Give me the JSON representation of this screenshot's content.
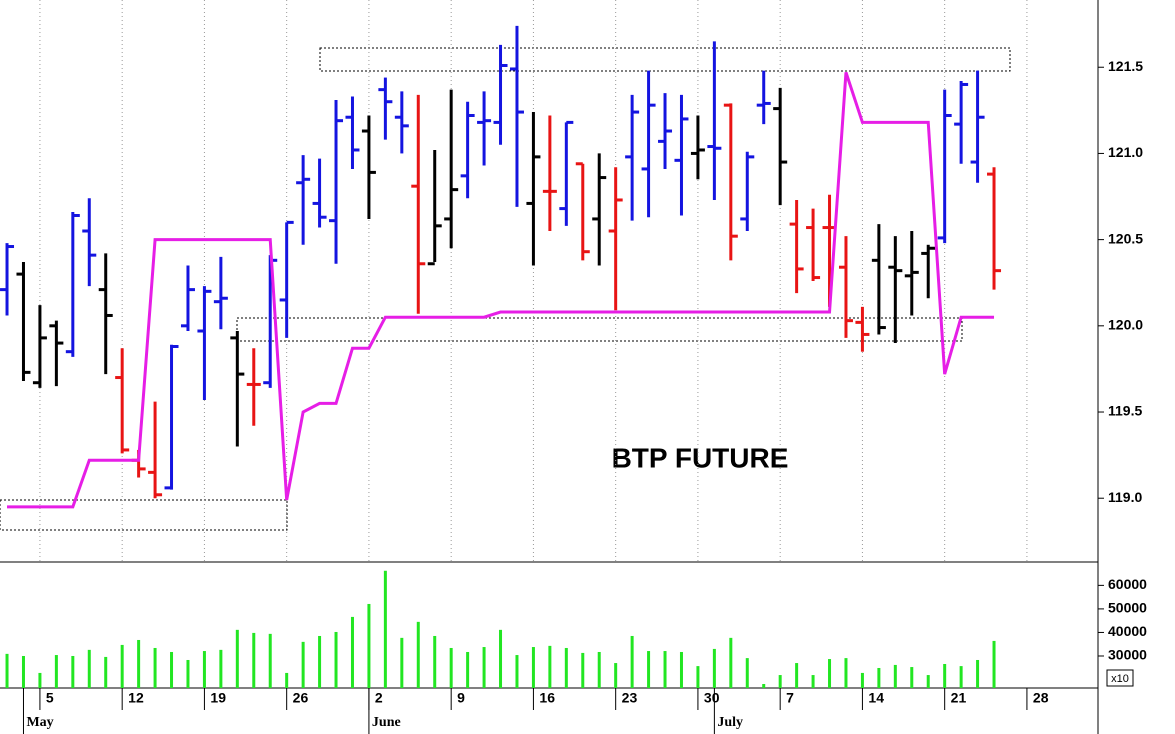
{
  "chart_data": [
    {
      "type": "ohlc",
      "title": "BTP FUTURE",
      "categories": [
        null,
        null,
        "5",
        null,
        null,
        null,
        null,
        "12",
        null,
        null,
        null,
        null,
        "19",
        null,
        null,
        null,
        null,
        "26",
        null,
        null,
        null,
        null,
        "2",
        null,
        null,
        null,
        null,
        "9",
        null,
        null,
        null,
        null,
        "16",
        null,
        null,
        null,
        null,
        "23",
        null,
        null,
        null,
        null,
        "30",
        null,
        null,
        null,
        null,
        "7",
        null,
        null,
        null,
        null,
        "14",
        null,
        null,
        null,
        null,
        "21",
        null,
        null,
        null,
        null,
        "28",
        null,
        null,
        null,
        null
      ],
      "month_categories": [
        null,
        "May",
        null,
        null,
        null,
        null,
        null,
        null,
        null,
        null,
        null,
        null,
        null,
        null,
        null,
        null,
        null,
        null,
        null,
        null,
        null,
        null,
        "June",
        null,
        null,
        null,
        null,
        null,
        null,
        null,
        null,
        null,
        null,
        null,
        null,
        null,
        null,
        null,
        null,
        null,
        null,
        null,
        null,
        "July",
        null,
        null,
        null,
        null,
        null,
        null,
        null,
        null,
        null,
        null,
        null,
        null,
        null,
        null,
        null,
        null,
        null,
        null,
        null,
        null,
        null,
        null,
        null
      ],
      "open": [
        120.21,
        120.3,
        119.67,
        120.0,
        119.85,
        120.55,
        120.21,
        119.7,
        119.22,
        119.15,
        119.06,
        120.0,
        119.97,
        120.14,
        119.93,
        119.66,
        119.67,
        120.15,
        120.83,
        120.71,
        120.61,
        121.21,
        121.13,
        121.37,
        121.21,
        120.81,
        120.36,
        120.62,
        120.87,
        121.18,
        121.18,
        121.49,
        120.71,
        120.78,
        120.68,
        120.94,
        120.62,
        120.55,
        120.98,
        120.91,
        121.07,
        120.96,
        121.0,
        121.04,
        121.28,
        120.62,
        121.28,
        121.26,
        120.59,
        120.57,
        120.57,
        120.34,
        120.02,
        120.38,
        120.34,
        120.29,
        120.42,
        120.51,
        121.17,
        120.95,
        120.88,
        null,
        null,
        null,
        null,
        null,
        null
      ],
      "high": [
        120.48,
        120.37,
        120.12,
        120.03,
        120.66,
        120.74,
        120.42,
        119.87,
        119.28,
        119.56,
        119.89,
        120.35,
        120.23,
        120.4,
        119.97,
        119.87,
        120.41,
        120.6,
        120.99,
        120.97,
        121.31,
        121.33,
        121.22,
        121.44,
        121.36,
        121.34,
        121.02,
        121.37,
        121.3,
        121.36,
        121.63,
        121.74,
        121.24,
        121.22,
        121.18,
        120.94,
        121.0,
        120.92,
        121.34,
        121.48,
        121.35,
        121.34,
        121.22,
        121.65,
        121.29,
        121.01,
        121.48,
        121.38,
        120.73,
        120.68,
        120.76,
        120.52,
        120.11,
        120.59,
        120.52,
        120.55,
        120.47,
        121.37,
        121.42,
        121.48,
        120.92,
        null,
        null,
        null,
        null,
        null,
        null
      ],
      "low": [
        120.06,
        119.68,
        119.64,
        119.65,
        119.82,
        120.23,
        119.72,
        119.26,
        119.12,
        119.0,
        119.05,
        119.97,
        119.57,
        119.98,
        119.3,
        119.42,
        119.64,
        119.93,
        120.47,
        120.57,
        120.36,
        120.91,
        120.62,
        121.08,
        121.0,
        120.07,
        120.37,
        120.45,
        120.74,
        120.93,
        121.05,
        120.69,
        120.35,
        120.55,
        120.58,
        120.38,
        120.35,
        120.09,
        120.61,
        120.63,
        120.91,
        120.64,
        120.85,
        120.73,
        120.38,
        120.55,
        121.17,
        120.7,
        120.19,
        120.26,
        120.11,
        119.93,
        119.85,
        119.95,
        119.9,
        120.06,
        120.16,
        120.48,
        120.94,
        120.83,
        120.21,
        null,
        null,
        null,
        null,
        null,
        null
      ],
      "close": [
        120.46,
        119.73,
        119.93,
        119.9,
        120.64,
        120.41,
        120.06,
        119.28,
        119.17,
        119.02,
        119.88,
        120.21,
        120.2,
        120.16,
        119.72,
        119.66,
        120.38,
        120.6,
        120.85,
        120.63,
        121.19,
        121.02,
        120.89,
        121.3,
        121.16,
        120.36,
        120.58,
        120.79,
        121.22,
        121.19,
        121.51,
        121.24,
        120.98,
        120.78,
        121.18,
        120.43,
        120.86,
        120.73,
        121.24,
        121.28,
        121.13,
        121.2,
        121.02,
        121.03,
        120.52,
        120.98,
        121.29,
        120.95,
        120.33,
        120.28,
        120.57,
        120.03,
        119.95,
        119.99,
        120.32,
        120.31,
        120.45,
        121.22,
        121.4,
        121.21,
        120.32,
        null,
        null,
        null,
        null,
        null,
        null
      ],
      "colors": [
        "#1414e0",
        "#000000",
        "#000000",
        "#000000",
        "#1414e0",
        "#1414e0",
        "#000000",
        "#e81414",
        "#e81414",
        "#e81414",
        "#1414e0",
        "#1414e0",
        "#1414e0",
        "#1414e0",
        "#000000",
        "#e81414",
        "#1414e0",
        "#1414e0",
        "#1414e0",
        "#1414e0",
        "#1414e0",
        "#1414e0",
        "#000000",
        "#1414e0",
        "#1414e0",
        "#e81414",
        "#000000",
        "#000000",
        "#1414e0",
        "#1414e0",
        "#1414e0",
        "#1414e0",
        "#000000",
        "#e81414",
        "#1414e0",
        "#e81414",
        "#000000",
        "#e81414",
        "#1414e0",
        "#1414e0",
        "#1414e0",
        "#1414e0",
        "#000000",
        "#1414e0",
        "#e81414",
        "#1414e0",
        "#1414e0",
        "#000000",
        "#e81414",
        "#e81414",
        "#e81414",
        "#e81414",
        "#e81414",
        "#000000",
        "#000000",
        "#000000",
        "#000000",
        "#1414e0",
        "#1414e0",
        "#1414e0",
        "#e81414",
        null,
        null,
        null,
        null,
        null,
        null
      ],
      "line": {
        "color": "#e61ee6",
        "values": [
          118.95,
          118.95,
          118.95,
          118.95,
          118.95,
          119.22,
          119.22,
          119.22,
          119.22,
          120.5,
          120.5,
          120.5,
          120.5,
          120.5,
          120.5,
          120.5,
          120.5,
          118.99,
          119.5,
          119.55,
          119.55,
          119.87,
          119.87,
          120.05,
          120.05,
          120.05,
          120.05,
          120.05,
          120.05,
          120.05,
          120.08,
          120.08,
          120.08,
          120.08,
          120.08,
          120.08,
          120.08,
          120.08,
          120.08,
          120.08,
          120.08,
          120.08,
          120.08,
          120.08,
          120.08,
          120.08,
          120.08,
          120.08,
          120.08,
          120.08,
          120.08,
          121.47,
          121.18,
          121.18,
          121.18,
          121.18,
          121.18,
          119.72,
          120.05,
          120.05,
          120.05,
          null,
          null,
          null,
          null,
          null,
          null
        ]
      },
      "ylim": [
        118.63,
        121.89
      ],
      "yticks": [
        {
          "value": 119,
          "label": "119.0"
        },
        119.5,
        {
          "value": 120,
          "label": "120.0"
        },
        120.5,
        {
          "value": 121,
          "label": "121.0"
        },
        121.5
      ],
      "grid": true
    },
    {
      "type": "bar",
      "color": "#22e622",
      "unit_label": "x10",
      "values": [
        30900,
        30000,
        22800,
        30400,
        30000,
        32600,
        29600,
        34700,
        36800,
        33400,
        31700,
        28300,
        32100,
        32600,
        41100,
        39800,
        39400,
        22800,
        36000,
        38500,
        40200,
        46600,
        52100,
        66200,
        37700,
        44500,
        38500,
        33400,
        31700,
        33800,
        41100,
        30400,
        33800,
        34300,
        33400,
        31300,
        31700,
        27000,
        38500,
        32100,
        32100,
        31700,
        25700,
        33000,
        37700,
        29100,
        18100,
        21900,
        27000,
        21900,
        28700,
        29100,
        22800,
        24900,
        26200,
        25300,
        21900,
        26600,
        25700,
        28300,
        36400,
        null,
        null,
        null,
        null,
        null,
        null
      ],
      "ylim": [
        16400,
        69500
      ],
      "yticks": [
        30000,
        40000,
        50000,
        60000
      ]
    }
  ]
}
